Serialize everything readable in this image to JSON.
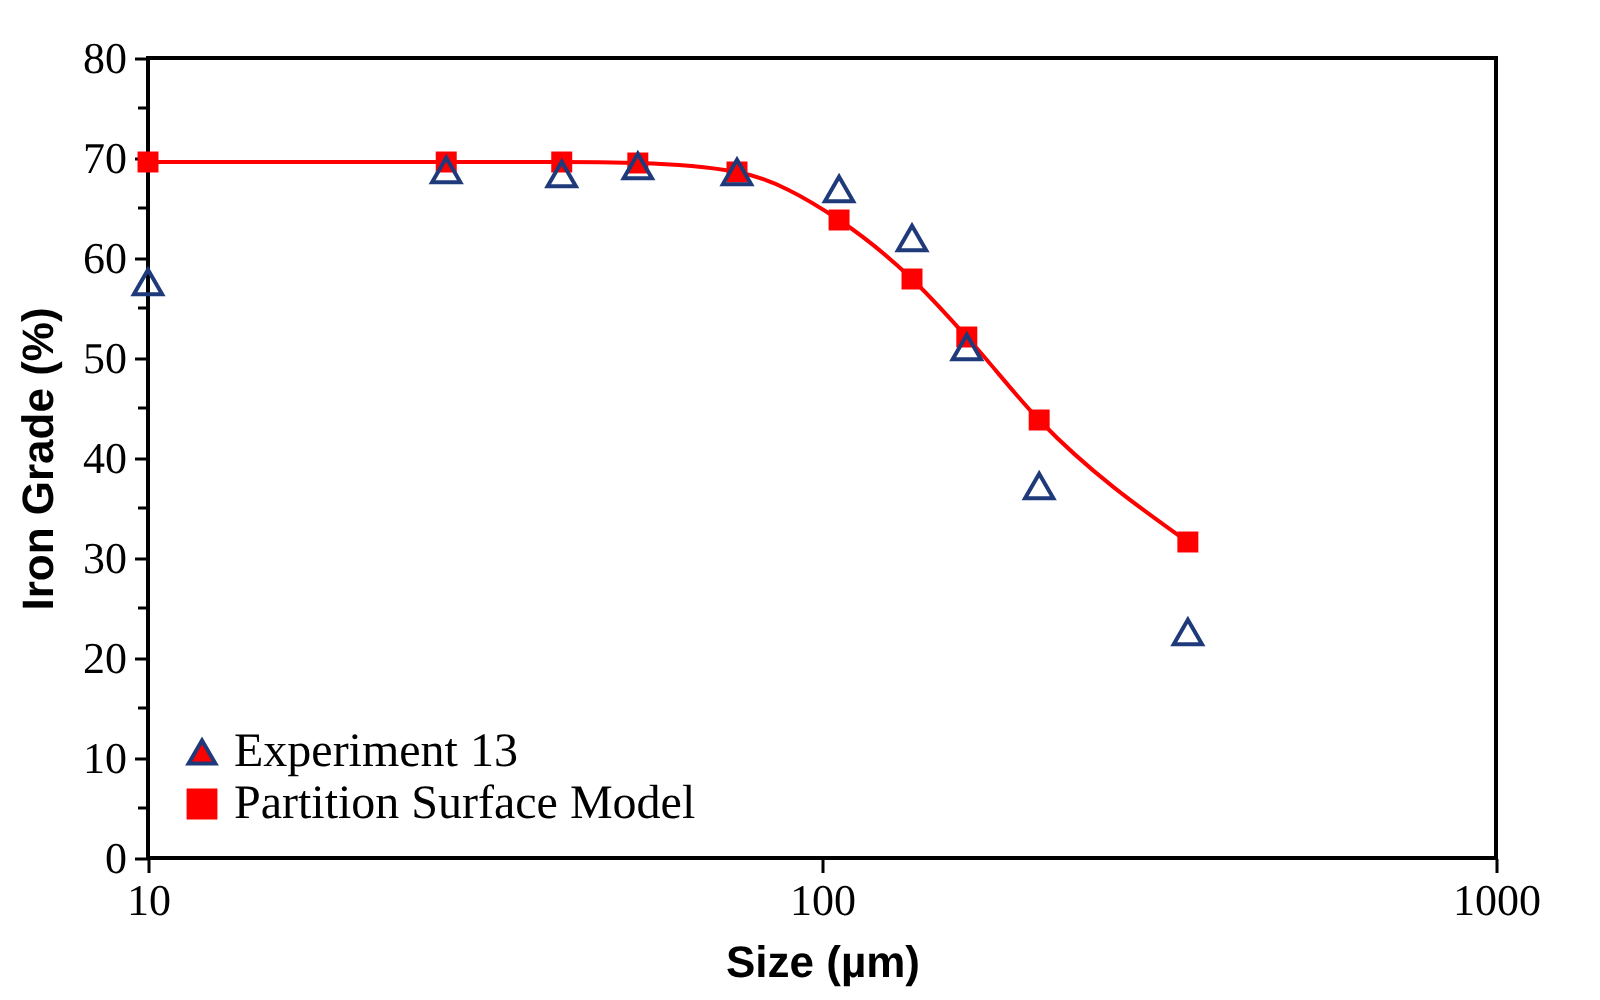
{
  "chart_data": {
    "type": "scatter",
    "xlabel": "Size (µm)",
    "ylabel": "Iron Grade (%)",
    "log": "x",
    "xlim": [
      10,
      1000
    ],
    "xticks": [
      10,
      100,
      1000
    ],
    "ylim": [
      0,
      80
    ],
    "yticks": [
      0,
      {
        "value": 5,
        "label": null
      },
      10,
      {
        "value": 15,
        "label": null
      },
      20,
      {
        "value": 25,
        "label": null
      },
      30,
      {
        "value": 35,
        "label": null
      },
      40,
      {
        "value": 45,
        "label": null
      },
      50,
      {
        "value": 55,
        "label": null
      },
      60,
      {
        "value": 65,
        "label": null
      },
      70,
      {
        "value": 75,
        "label": null
      },
      80
    ],
    "grid": false,
    "legend": "bottom left",
    "series": [
      {
        "name": "Experiment 13",
        "marker": "triangle",
        "color": "#1f3a7a",
        "x": [
          10,
          27.7,
          41.1,
          53.3,
          74.8,
          106,
          136,
          164,
          210,
          349
        ],
        "values": [
          57.6,
          68.8,
          68.4,
          69.2,
          68.6,
          66.9,
          62.0,
          51.1,
          37.2,
          22.6
        ]
      },
      {
        "name": "Partition Surface Model",
        "type": "line",
        "marker": "square",
        "color": "#ff0000",
        "x": [
          10,
          27.7,
          41.1,
          53.3,
          74.8,
          106,
          136,
          164,
          210,
          349
        ],
        "values": [
          69.6,
          69.6,
          69.6,
          69.5,
          68.6,
          63.8,
          57.9,
          52.1,
          43.8,
          31.6
        ]
      }
    ]
  }
}
